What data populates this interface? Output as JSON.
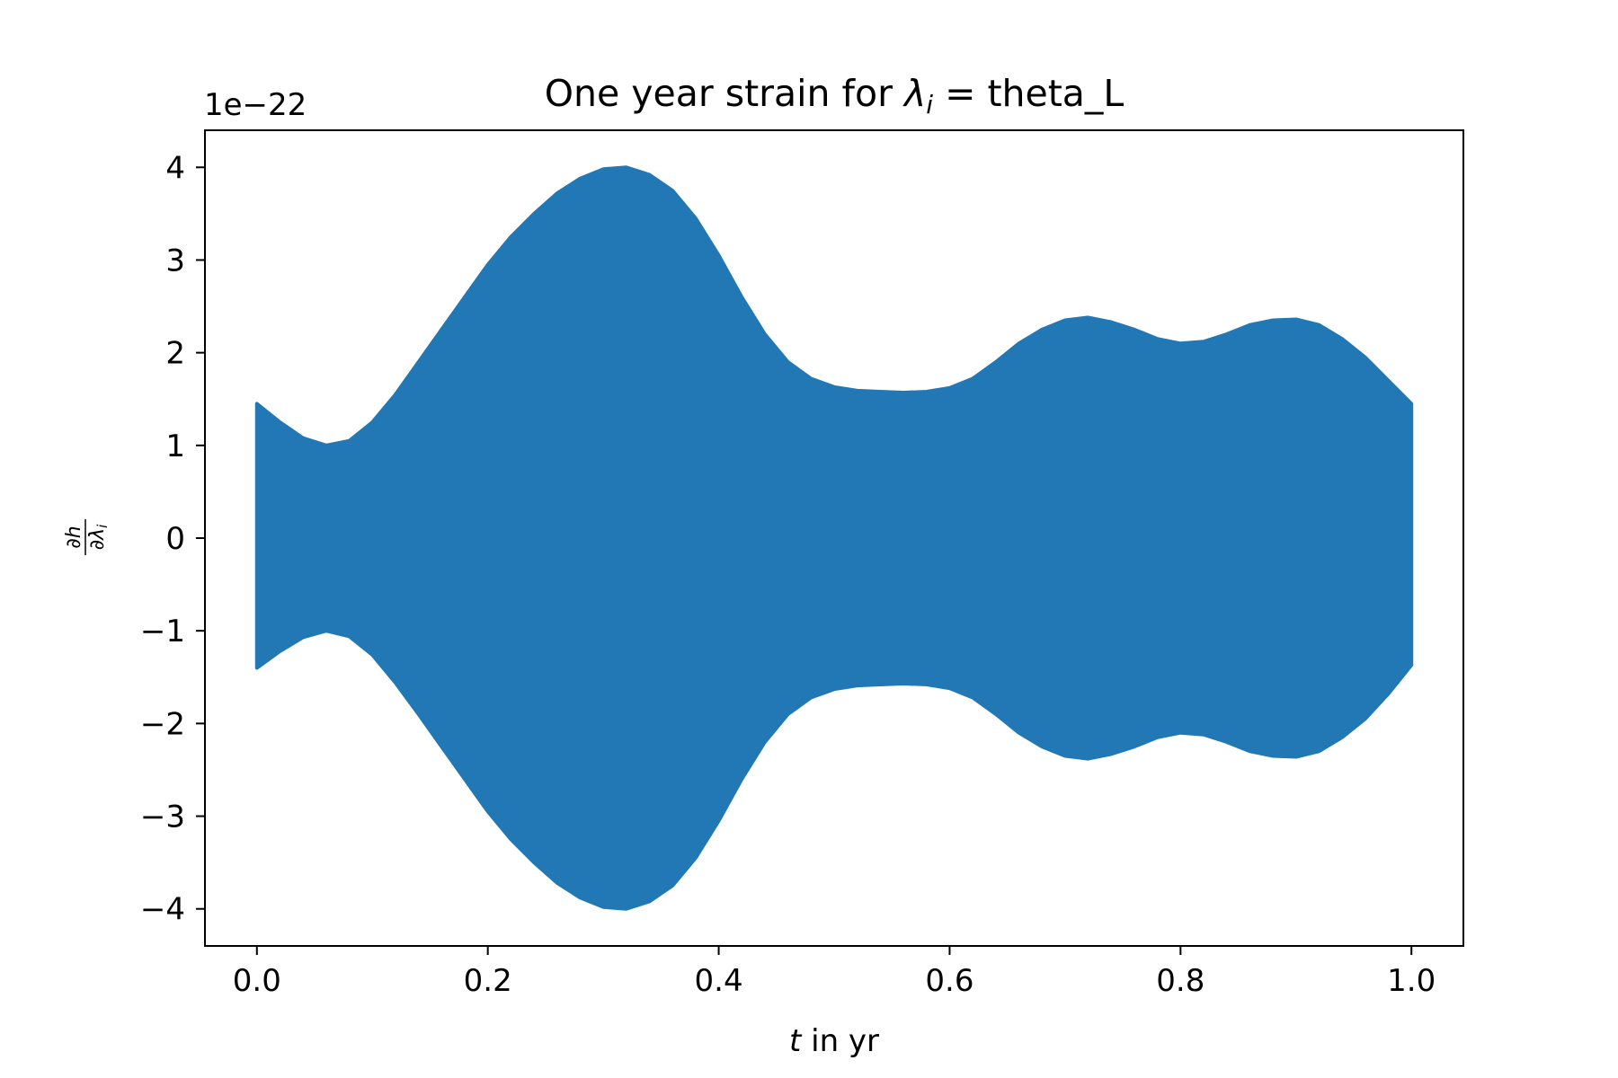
{
  "chart_data": {
    "type": "area",
    "title_prefix": "One year strain for ",
    "title_symbol": "λ",
    "title_subscript": "i",
    "title_suffix": " = theta_L",
    "xlabel_var": "t",
    "xlabel_rest": " in yr",
    "ylabel_num": "∂h",
    "ylabel_den": "∂λ",
    "ylabel_den_sub": "i",
    "y_offset_text": "1e−22",
    "xlim": [
      -0.045,
      1.045
    ],
    "ylim": [
      -4.4,
      4.4
    ],
    "x_ticks": [
      0.0,
      0.2,
      0.4,
      0.6,
      0.8,
      1.0
    ],
    "x_tick_labels": [
      "0.0",
      "0.2",
      "0.4",
      "0.6",
      "0.8",
      "1.0"
    ],
    "y_ticks": [
      4,
      3,
      2,
      1,
      0,
      -1,
      -2,
      -3,
      -4
    ],
    "y_tick_labels": [
      "4",
      "3",
      "2",
      "1",
      "0",
      "−1",
      "−2",
      "−3",
      "−4"
    ],
    "grid": false,
    "series_color": "#2178b4",
    "envelope": {
      "x": [
        0.0,
        0.02,
        0.04,
        0.06,
        0.08,
        0.1,
        0.12,
        0.14,
        0.16,
        0.18,
        0.2,
        0.22,
        0.24,
        0.26,
        0.28,
        0.3,
        0.32,
        0.34,
        0.36,
        0.38,
        0.4,
        0.42,
        0.44,
        0.46,
        0.48,
        0.5,
        0.52,
        0.54,
        0.56,
        0.58,
        0.6,
        0.62,
        0.64,
        0.66,
        0.68,
        0.7,
        0.72,
        0.74,
        0.76,
        0.78,
        0.8,
        0.82,
        0.84,
        0.86,
        0.88,
        0.9,
        0.92,
        0.94,
        0.96,
        0.98,
        1.0
      ],
      "upper": [
        1.45,
        1.25,
        1.08,
        1.0,
        1.05,
        1.25,
        1.55,
        1.9,
        2.25,
        2.6,
        2.95,
        3.25,
        3.5,
        3.72,
        3.88,
        3.98,
        4.0,
        3.92,
        3.75,
        3.45,
        3.05,
        2.6,
        2.2,
        1.9,
        1.72,
        1.63,
        1.59,
        1.58,
        1.57,
        1.58,
        1.62,
        1.72,
        1.9,
        2.1,
        2.25,
        2.35,
        2.38,
        2.33,
        2.25,
        2.15,
        2.1,
        2.12,
        2.2,
        2.3,
        2.35,
        2.36,
        2.3,
        2.15,
        1.95,
        1.7,
        1.45
      ],
      "lower": [
        -1.4,
        -1.22,
        -1.07,
        -1.0,
        -1.06,
        -1.26,
        -1.56,
        -1.9,
        -2.25,
        -2.6,
        -2.95,
        -3.25,
        -3.5,
        -3.72,
        -3.88,
        -3.98,
        -4.0,
        -3.92,
        -3.75,
        -3.45,
        -3.05,
        -2.6,
        -2.2,
        -1.9,
        -1.72,
        -1.63,
        -1.59,
        -1.58,
        -1.57,
        -1.58,
        -1.62,
        -1.72,
        -1.9,
        -2.1,
        -2.25,
        -2.35,
        -2.38,
        -2.33,
        -2.25,
        -2.15,
        -2.1,
        -2.12,
        -2.2,
        -2.3,
        -2.35,
        -2.36,
        -2.3,
        -2.15,
        -1.95,
        -1.68,
        -1.37
      ]
    }
  }
}
